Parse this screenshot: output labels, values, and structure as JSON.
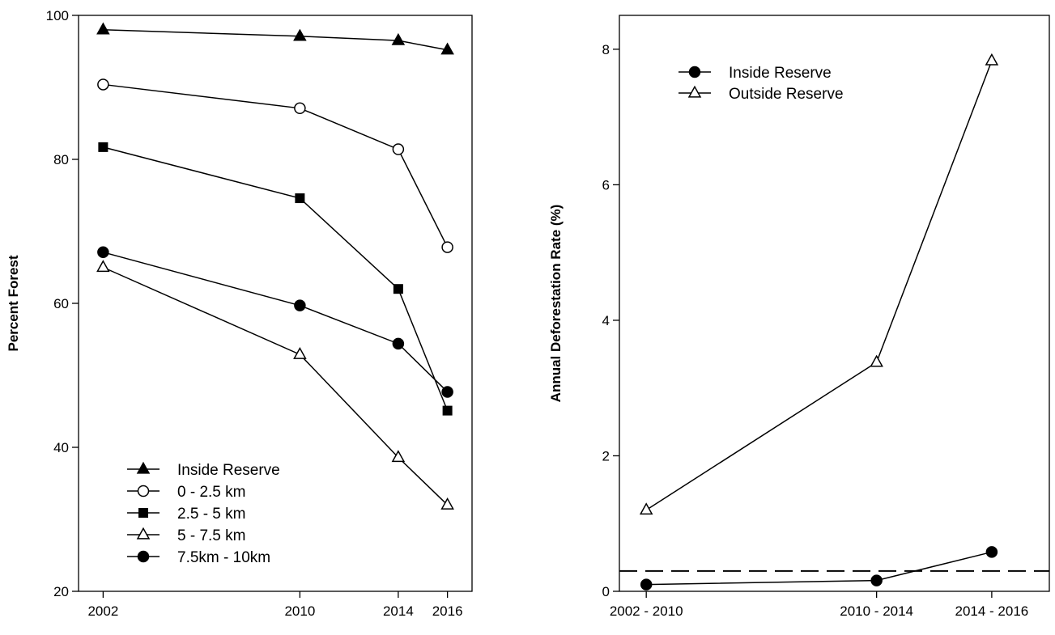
{
  "chart_data": [
    {
      "type": "line",
      "title": "",
      "xlabel": "",
      "ylabel": "Percent Forest",
      "x": [
        2002,
        2010,
        2014,
        2016
      ],
      "xticks": [
        "2002",
        "2010",
        "2014",
        "2016"
      ],
      "xlim": [
        2001,
        2017
      ],
      "ylim": [
        20,
        100
      ],
      "yticks": [
        "20",
        "40",
        "60",
        "80",
        "100"
      ],
      "grid": false,
      "legend": "bottom-left",
      "series": [
        {
          "name": "Inside Reserve",
          "marker": "filled-triangle",
          "values": [
            98.0,
            97.1,
            96.5,
            95.2
          ]
        },
        {
          "name": "0 - 2.5 km",
          "marker": "open-circle",
          "values": [
            90.4,
            87.1,
            81.4,
            67.8
          ]
        },
        {
          "name": "2.5 - 5 km",
          "marker": "filled-square",
          "values": [
            81.7,
            74.6,
            62.0,
            45.1
          ]
        },
        {
          "name": "5 - 7.5 km",
          "marker": "open-triangle",
          "values": [
            65.0,
            52.9,
            38.6,
            32.0
          ]
        },
        {
          "name": "7.5km - 10km",
          "marker": "filled-circle",
          "values": [
            67.1,
            59.7,
            54.4,
            47.7
          ]
        }
      ]
    },
    {
      "type": "line",
      "title": "",
      "xlabel": "",
      "ylabel": "Annual Deforestation Rate (%)",
      "categories": [
        "2002 - 2010",
        "2010 - 2014",
        "2014 - 2016"
      ],
      "x": [
        2006,
        2012,
        2015
      ],
      "xlim": [
        2005.3,
        2016.5
      ],
      "ylim": [
        0,
        8.5
      ],
      "yticks": [
        "0",
        "2",
        "4",
        "6",
        "8"
      ],
      "grid": false,
      "legend": "top-left",
      "reference_line": {
        "y": 0.3,
        "style": "dashed"
      },
      "series": [
        {
          "name": "Inside Reserve",
          "marker": "filled-circle",
          "values": [
            0.1,
            0.16,
            0.58
          ]
        },
        {
          "name": "Outside Reserve",
          "marker": "open-triangle",
          "values": [
            1.2,
            3.38,
            7.83
          ]
        }
      ]
    }
  ]
}
